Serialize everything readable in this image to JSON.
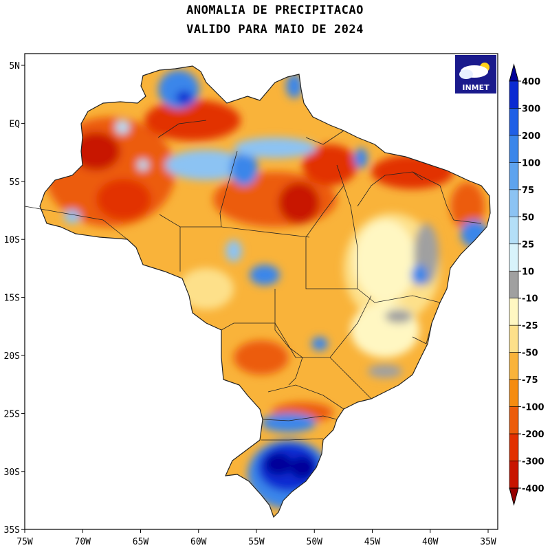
{
  "title": {
    "line1": "ANOMALIA DE PRECIPITACAO",
    "line2": "VALIDO PARA MAIO DE 2024"
  },
  "axes": {
    "longitude_labels": [
      "75W",
      "70W",
      "65W",
      "60W",
      "55W",
      "50W",
      "45W",
      "40W",
      "35W"
    ],
    "latitude_labels": [
      "5N",
      "EQ",
      "5S",
      "10S",
      "15S",
      "20S",
      "25S",
      "30S",
      "35S"
    ]
  },
  "logo": {
    "text": "INMET",
    "icon": "sun-cloud-logo"
  },
  "colorbar": {
    "labels": [
      "400",
      "300",
      "200",
      "100",
      "75",
      "50",
      "25",
      "10",
      "-10",
      "-25",
      "-50",
      "-75",
      "-100",
      "-200",
      "-300",
      "-400"
    ],
    "colors": [
      "#000099",
      "#0a2ad2",
      "#1f5fe6",
      "#3b86ea",
      "#5ea3ee",
      "#8cc3f3",
      "#b4dff7",
      "#d8f3fb",
      "#a0a0a0",
      "#fff7c2",
      "#fde08a",
      "#f9b33a",
      "#f58c10",
      "#ec5c0a",
      "#e23000",
      "#c81400",
      "#960000"
    ],
    "top_color": "#000099",
    "bottom_color": "#960000"
  },
  "map": {
    "colors": {
      "orange_dark": "#f58c10",
      "orange": "#f9b33a",
      "orange_red": "#ec5c0a",
      "red": "#e23000",
      "red_dark": "#c81400",
      "yellow": "#fde08a",
      "pale_yellow": "#fff7c2",
      "gray": "#a0a0a0",
      "blue_light": "#8cc3f3",
      "blue": "#3b86ea",
      "blue_deep": "#0a2ad2",
      "navy": "#000099",
      "cyan": "#b4dff7"
    }
  }
}
